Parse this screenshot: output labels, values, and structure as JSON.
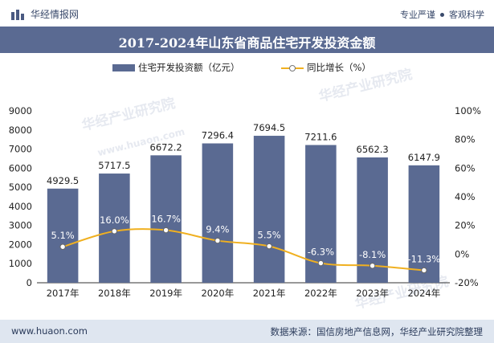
{
  "header": {
    "brand_name": "华经情报网",
    "tagline_left": "专业严谨",
    "tagline_right": "客观科学"
  },
  "chart_data": {
    "type": "bar",
    "title": "2017-2024年山东省商品住宅开发投资金额",
    "categories": [
      "2017年",
      "2018年",
      "2019年",
      "2020年",
      "2021年",
      "2022年",
      "2023年",
      "2024年"
    ],
    "series": [
      {
        "name": "住宅开发投资额（亿元）",
        "type": "bar",
        "axis": "left",
        "color": "#5a6a92",
        "values": [
          4929.5,
          5717.5,
          6672.2,
          7296.4,
          7694.5,
          7211.6,
          6562.3,
          6147.9
        ],
        "labels": [
          "4929.5",
          "5717.5",
          "6672.2",
          "7296.4",
          "7694.5",
          "7211.6",
          "6562.3",
          "6147.9"
        ]
      },
      {
        "name": "同比增长（%）",
        "type": "line",
        "axis": "right",
        "color": "#f0b020",
        "values": [
          5.1,
          16.0,
          16.7,
          9.4,
          5.5,
          -6.3,
          -8.1,
          -11.3
        ],
        "labels": [
          "5.1%",
          "16.0%",
          "16.7%",
          "9.4%",
          "5.5%",
          "-6.3%",
          "-8.1%",
          "-11.3%"
        ]
      }
    ],
    "ylim_left": [
      0,
      9000
    ],
    "yticks_left": [
      "0",
      "1000",
      "2000",
      "3000",
      "4000",
      "5000",
      "6000",
      "7000",
      "8000",
      "9000"
    ],
    "ylim_right": [
      -20,
      100
    ],
    "yticks_right": [
      "-20%",
      "0%",
      "20%",
      "40%",
      "60%",
      "80%",
      "100%"
    ],
    "legend_position": "top-center",
    "grid": false
  },
  "watermark": {
    "text_cn": "华经产业研究院",
    "text_url": "www.huaon.com"
  },
  "footer": {
    "url": "www.huaon.com",
    "source": "数据来源：国信房地产信息网，华经产业研究院整理"
  }
}
